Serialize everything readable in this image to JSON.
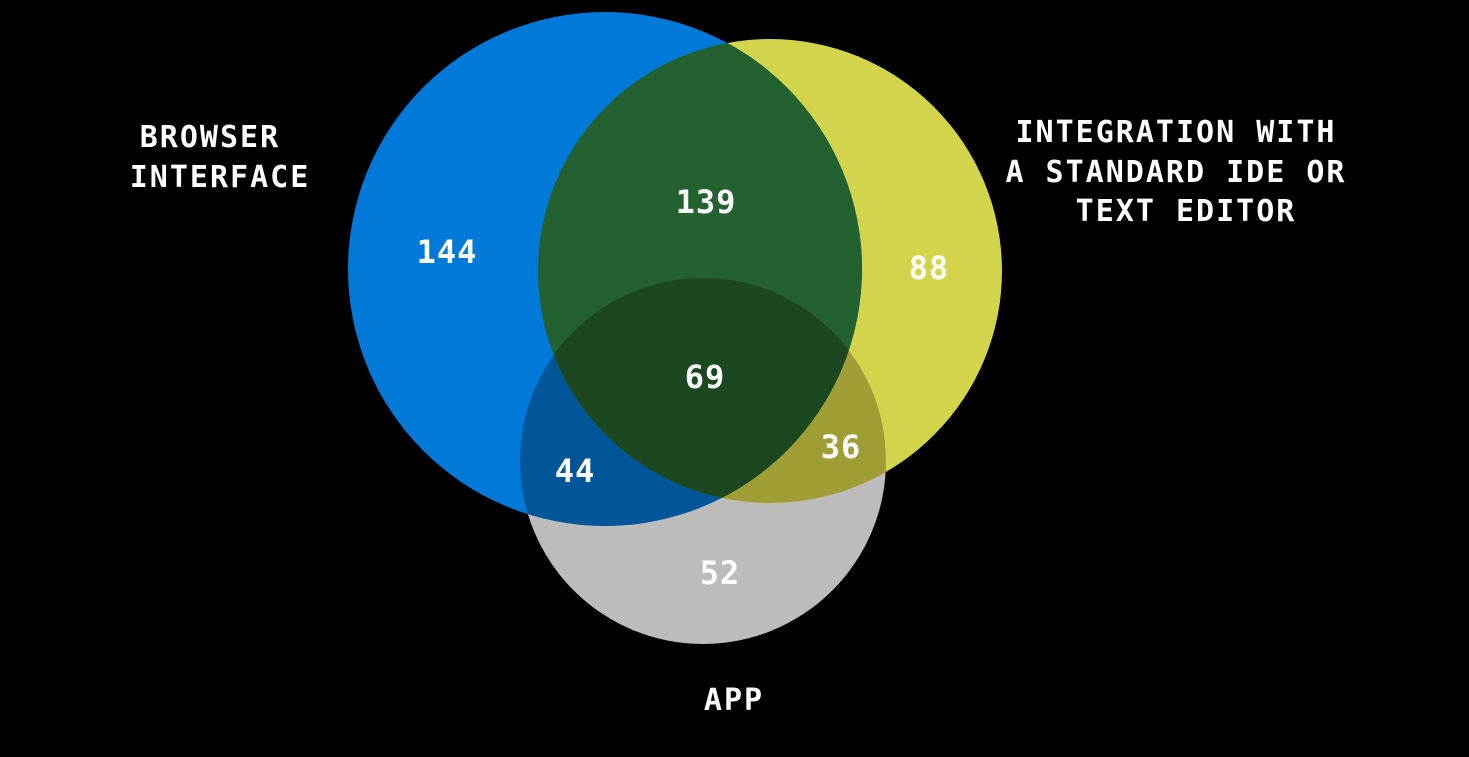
{
  "colors": {
    "background": "#000000",
    "text": "#ffffff"
  },
  "chart_data": {
    "type": "venn",
    "sets": [
      {
        "id": "browser",
        "label_lines": [
          "BROWSER",
          "INTERFACE"
        ],
        "color": "#0079d8"
      },
      {
        "id": "ide",
        "label_lines": [
          "INTEGRATION WITH",
          "A STANDARD IDE OR",
          "TEXT EDITOR"
        ],
        "color": "#d2d54b"
      },
      {
        "id": "app",
        "label_lines": [
          "APP"
        ],
        "color": "#bdbcbc"
      }
    ],
    "regions": [
      {
        "sets": [
          "browser"
        ],
        "value": "144"
      },
      {
        "sets": [
          "ide"
        ],
        "value": "88"
      },
      {
        "sets": [
          "app"
        ],
        "value": "52"
      },
      {
        "sets": [
          "browser",
          "ide"
        ],
        "value": "139"
      },
      {
        "sets": [
          "browser",
          "app"
        ],
        "value": "44"
      },
      {
        "sets": [
          "ide",
          "app"
        ],
        "value": "36"
      },
      {
        "sets": [
          "browser",
          "ide",
          "app"
        ],
        "value": "69"
      }
    ],
    "region_colors": {
      "browser_ide": "#236130",
      "browser_app": "#005699",
      "ide_app": "#9f9e35",
      "all": "#1b4821"
    }
  }
}
